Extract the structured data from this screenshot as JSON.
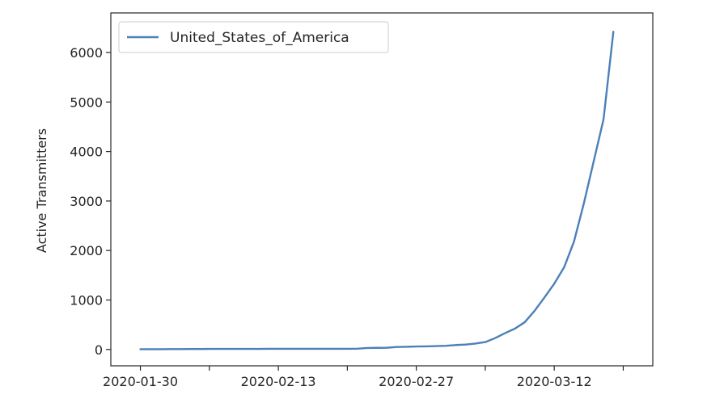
{
  "chart_data": {
    "type": "line",
    "title": "",
    "xlabel": "",
    "ylabel": "Active Transmitters",
    "x_range": [
      "2020-01-27",
      "2020-03-22"
    ],
    "ylim": [
      -330,
      6800
    ],
    "x_ticks": [
      {
        "date": "2020-01-30",
        "label": "2020-01-30"
      },
      {
        "date": "2020-02-06",
        "label": ""
      },
      {
        "date": "2020-02-13",
        "label": "2020-02-13"
      },
      {
        "date": "2020-02-20",
        "label": ""
      },
      {
        "date": "2020-02-27",
        "label": "2020-02-27"
      },
      {
        "date": "2020-03-05",
        "label": ""
      },
      {
        "date": "2020-03-12",
        "label": "2020-03-12"
      },
      {
        "date": "2020-03-19",
        "label": ""
      }
    ],
    "y_ticks": [
      0,
      1000,
      2000,
      3000,
      4000,
      5000,
      6000
    ],
    "y_tick_labels": [
      "0",
      "1000",
      "2000",
      "3000",
      "4000",
      "5000",
      "6000"
    ],
    "legend": {
      "position": "top-left"
    },
    "grid": false,
    "series": [
      {
        "name": "United_States_of_America",
        "color": "#4c80b8",
        "x": [
          "2020-01-30",
          "2020-01-31",
          "2020-02-01",
          "2020-02-02",
          "2020-02-03",
          "2020-02-04",
          "2020-02-05",
          "2020-02-06",
          "2020-02-07",
          "2020-02-08",
          "2020-02-09",
          "2020-02-10",
          "2020-02-11",
          "2020-02-12",
          "2020-02-13",
          "2020-02-14",
          "2020-02-15",
          "2020-02-16",
          "2020-02-17",
          "2020-02-18",
          "2020-02-19",
          "2020-02-20",
          "2020-02-21",
          "2020-02-22",
          "2020-02-23",
          "2020-02-24",
          "2020-02-25",
          "2020-02-26",
          "2020-02-27",
          "2020-02-28",
          "2020-02-29",
          "2020-03-01",
          "2020-03-02",
          "2020-03-03",
          "2020-03-04",
          "2020-03-05",
          "2020-03-06",
          "2020-03-07",
          "2020-03-08",
          "2020-03-09",
          "2020-03-10",
          "2020-03-11",
          "2020-03-12",
          "2020-03-13",
          "2020-03-14",
          "2020-03-15",
          "2020-03-16",
          "2020-03-17",
          "2020-03-18"
        ],
        "values": [
          5,
          5,
          6,
          7,
          8,
          9,
          10,
          11,
          11,
          11,
          11,
          12,
          12,
          13,
          13,
          14,
          14,
          14,
          14,
          14,
          14,
          14,
          15,
          30,
          33,
          35,
          50,
          55,
          60,
          62,
          68,
          75,
          90,
          100,
          120,
          150,
          230,
          330,
          420,
          550,
          780,
          1050,
          1330,
          1660,
          2180,
          2950,
          3800,
          4650,
          6420
        ]
      }
    ]
  }
}
